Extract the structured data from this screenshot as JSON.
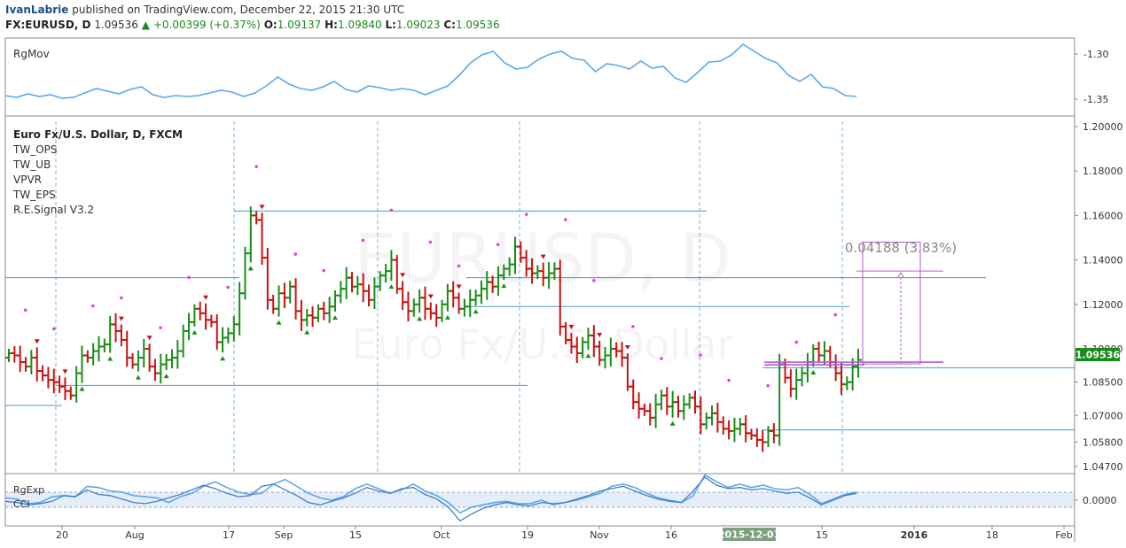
{
  "header": {
    "author": "IvanLabrie",
    "published": "published on TradingView.com, December 22, 2015 21:30 UTC",
    "symbol": "FX:EURUSD, D",
    "last": "1.09536",
    "change": "+0.00399 (+0.37%)",
    "o_label": "O:",
    "o_value": "1.09137",
    "h_label": "H:",
    "h_value": "1.09840",
    "l_label": "L:",
    "l_value": "1.09023",
    "c_label": "C:",
    "c_value": "1.09536"
  },
  "colors": {
    "up": "#1a8c1a",
    "down": "#cc1111",
    "neutral": "#333333",
    "line": "#5aa8ec",
    "level": "#2f8fd0",
    "marker": "#e040e0",
    "projection": "#b05ad6",
    "price_tag": "#1a8c1a"
  },
  "panes": {
    "top": {
      "title": "RgMov",
      "ticks": [
        "-1.30",
        "-1.35"
      ]
    },
    "main": {
      "title": "Euro Fx/U.S. Dollar, D, FXCM",
      "indicators": [
        "TW_OPS",
        "TW_UB",
        "VPVR",
        "TW_EPS",
        "R.E.Signal V3.2"
      ],
      "watermark_symbol": "EURUSD, D",
      "watermark_name": "Euro Fx/U.S. Dollar",
      "price_ticks": [
        "1.20000",
        "1.18000",
        "1.16000",
        "1.14000",
        "1.12000",
        "1.10000",
        "1.08500",
        "1.07000",
        "1.05800",
        "1.04700"
      ],
      "price_tag": "1.09536",
      "measure_label": "0.04188 (3.83%)"
    },
    "bottom": {
      "titles": [
        "RgExp",
        "CCI"
      ],
      "ticks": [
        "0.0000"
      ]
    }
  },
  "time_axis": {
    "labels": [
      "20",
      "Aug",
      "17",
      "Sep",
      "15",
      "Oct",
      "19",
      "Nov",
      "16",
      "2015-12-01",
      "15",
      "2016",
      "18",
      "Feb"
    ],
    "highlight": "2015-12-01"
  },
  "chart_data": {
    "type": "ohlc",
    "title": "Euro Fx/U.S. Dollar, D, FXCM",
    "period": "daily",
    "x_range": [
      "2015-07-10",
      "2016-02-05"
    ],
    "ylim": [
      1.042,
      1.206
    ],
    "close_series": [
      1.098,
      1.097,
      1.094,
      1.092,
      1.096,
      1.09,
      1.088,
      1.086,
      1.085,
      1.083,
      1.081,
      1.079,
      1.089,
      1.097,
      1.096,
      1.099,
      1.101,
      1.102,
      1.111,
      1.108,
      1.104,
      1.096,
      1.093,
      1.096,
      1.1,
      1.092,
      1.089,
      1.093,
      1.095,
      1.096,
      1.099,
      1.108,
      1.112,
      1.118,
      1.116,
      1.113,
      1.112,
      1.103,
      1.105,
      1.107,
      1.111,
      1.125,
      1.143,
      1.16,
      1.158,
      1.141,
      1.122,
      1.118,
      1.125,
      1.123,
      1.128,
      1.117,
      1.113,
      1.115,
      1.114,
      1.118,
      1.116,
      1.119,
      1.124,
      1.127,
      1.132,
      1.128,
      1.129,
      1.126,
      1.122,
      1.128,
      1.133,
      1.135,
      1.14,
      1.127,
      1.121,
      1.117,
      1.12,
      1.123,
      1.118,
      1.116,
      1.114,
      1.12,
      1.126,
      1.123,
      1.118,
      1.119,
      1.122,
      1.124,
      1.127,
      1.13,
      1.128,
      1.133,
      1.136,
      1.138,
      1.146,
      1.141,
      1.136,
      1.134,
      1.135,
      1.132,
      1.134,
      1.136,
      1.11,
      1.104,
      1.101,
      1.098,
      1.103,
      1.106,
      1.101,
      1.095,
      1.097,
      1.1,
      1.099,
      1.096,
      1.083,
      1.076,
      1.073,
      1.072,
      1.069,
      1.075,
      1.079,
      1.074,
      1.076,
      1.072,
      1.075,
      1.078,
      1.074,
      1.066,
      1.069,
      1.071,
      1.067,
      1.064,
      1.063,
      1.064,
      1.066,
      1.062,
      1.061,
      1.059,
      1.058,
      1.063,
      1.061,
      1.093,
      1.087,
      1.082,
      1.086,
      1.089,
      1.094,
      1.1,
      1.097,
      1.099,
      1.094,
      1.089,
      1.084,
      1.085,
      1.092,
      1.095
    ],
    "levels": [
      1.162,
      1.132,
      1.132,
      1.119,
      1.0915,
      1.0835,
      1.0745,
      1.0635
    ],
    "measure": {
      "label": "0.04188 (3.83%)",
      "from": 1.0932,
      "to": 1.135
    },
    "last_price": 1.09536,
    "rgmov_series": [
      -1.346,
      -1.348,
      -1.344,
      -1.347,
      -1.345,
      -1.349,
      -1.348,
      -1.343,
      -1.338,
      -1.341,
      -1.344,
      -1.339,
      -1.336,
      -1.345,
      -1.348,
      -1.346,
      -1.347,
      -1.346,
      -1.343,
      -1.34,
      -1.342,
      -1.347,
      -1.343,
      -1.335,
      -1.325,
      -1.333,
      -1.338,
      -1.34,
      -1.336,
      -1.33,
      -1.339,
      -1.342,
      -1.335,
      -1.337,
      -1.34,
      -1.338,
      -1.34,
      -1.345,
      -1.34,
      -1.335,
      -1.323,
      -1.309,
      -1.3,
      -1.296,
      -1.309,
      -1.316,
      -1.314,
      -1.305,
      -1.299,
      -1.296,
      -1.304,
      -1.306,
      -1.319,
      -1.31,
      -1.312,
      -1.316,
      -1.307,
      -1.315,
      -1.313,
      -1.326,
      -1.331,
      -1.32,
      -1.308,
      -1.307,
      -1.3,
      -1.288,
      -1.296,
      -1.304,
      -1.309,
      -1.323,
      -1.33,
      -1.322,
      -1.336,
      -1.338,
      -1.346,
      -1.347
    ],
    "rgexp_series": [
      0.002,
      0.001,
      -0.003,
      -0.002,
      0.003,
      0.004,
      0.003,
      0.012,
      0.011,
      0.008,
      0.007,
      0.004,
      0.003,
      0.002,
      -0.002,
      0.003,
      0.006,
      0.012,
      0.016,
      0.011,
      0.007,
      0.005,
      0.006,
      0.014,
      0.018,
      0.012,
      0.006,
      0.002,
      0.0,
      0.003,
      0.01,
      0.014,
      0.01,
      0.006,
      0.009,
      0.014,
      0.008,
      0.004,
      -0.002,
      -0.011,
      -0.006,
      -0.004,
      -0.002,
      -0.001,
      -0.003,
      -0.003,
      0.0,
      -0.004,
      -0.002,
      0.0,
      0.003,
      0.006,
      0.012,
      0.014,
      0.011,
      0.006,
      0.002,
      0.0,
      -0.002,
      0.004,
      0.022,
      0.016,
      0.011,
      0.014,
      0.011,
      0.013,
      0.01,
      0.009,
      0.011,
      0.005,
      -0.003,
      0.001,
      0.005,
      0.007
    ],
    "cci_series": [
      -0.001,
      -0.002,
      -0.004,
      -0.003,
      -0.001,
      0.004,
      0.003,
      0.009,
      0.005,
      0.004,
      0.001,
      -0.002,
      -0.003,
      -0.001,
      0.002,
      0.005,
      0.009,
      0.013,
      0.01,
      0.006,
      0.003,
      0.004,
      0.012,
      0.014,
      0.009,
      0.004,
      -0.002,
      -0.004,
      -0.001,
      0.002,
      0.006,
      0.011,
      0.008,
      0.006,
      0.01,
      0.011,
      0.005,
      0.001,
      -0.006,
      -0.018,
      -0.012,
      -0.007,
      -0.004,
      -0.002,
      -0.004,
      -0.005,
      -0.002,
      -0.003,
      -0.002,
      0.001,
      0.004,
      0.008,
      0.01,
      0.012,
      0.008,
      0.004,
      0.001,
      -0.001,
      -0.002,
      0.008,
      0.02,
      0.013,
      0.01,
      0.011,
      0.009,
      0.01,
      0.008,
      0.006,
      0.007,
      0.002,
      -0.004,
      0.0,
      0.004,
      0.006
    ]
  }
}
